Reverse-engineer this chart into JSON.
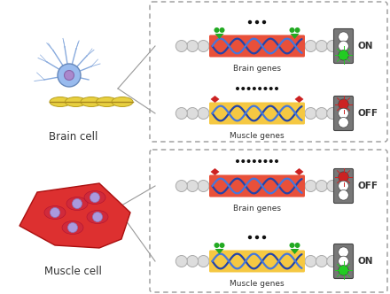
{
  "bg_color": "#ffffff",
  "dna_orange": "#e8503a",
  "dna_yellow": "#f5c842",
  "dna_blue_dark": "#2244aa",
  "dna_blue_light": "#4477dd",
  "green_marker": "#22aa22",
  "red_marker": "#cc2222",
  "traffic_gray": "#888888",
  "traffic_green": "#22cc22",
  "traffic_red": "#cc2222",
  "dot_color": "#111111",
  "text_color": "#333333",
  "title_brain": "Brain cell",
  "title_muscle": "Muscle cell",
  "label_brain_genes": "Brain genes",
  "label_muscle_genes": "Muscle genes",
  "label_on": "ON",
  "label_off": "OFF",
  "box_line_color": "#999999",
  "line_color": "#999999",
  "nucleosome_color": "#dddddd",
  "nucleosome_edge": "#aaaaaa"
}
